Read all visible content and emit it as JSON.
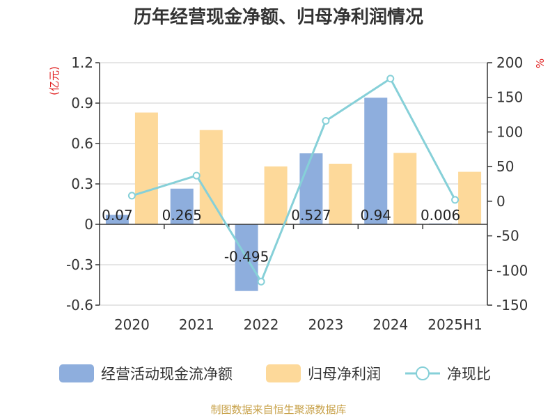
{
  "page": {
    "title": "历年经营现金净额、归母净利润情况",
    "source": "制图数据来自恒生聚源数据库"
  },
  "chart_data": {
    "type": "bar",
    "title": "历年经营现金净额、归母净利润情况",
    "categories": [
      "2020",
      "2021",
      "2022",
      "2023",
      "2024",
      "2025H1"
    ],
    "y_left": {
      "unit_label": "(亿元)",
      "range": [
        -0.6,
        1.2
      ],
      "ticks": [
        "1.2",
        "0.9",
        "0.6",
        "0.3",
        "0",
        "-0.3",
        "-0.6"
      ],
      "tick_values": [
        1.2,
        0.9,
        0.6,
        0.3,
        0,
        -0.3,
        -0.6
      ]
    },
    "y_right": {
      "unit_label": "%",
      "range": [
        -150,
        200
      ],
      "ticks": [
        "200",
        "150",
        "100",
        "50",
        "0",
        "-50",
        "-100",
        "-150"
      ],
      "tick_values": [
        200,
        150,
        100,
        50,
        0,
        -50,
        -100,
        -150
      ]
    },
    "series": [
      {
        "name": "经营活动现金流净额",
        "type": "bar",
        "axis": "left",
        "color": "#8eaedd",
        "values": [
          0.07,
          0.265,
          -0.495,
          0.527,
          0.94,
          0.006
        ],
        "labels": [
          "0.07",
          "0.265",
          "-0.495",
          "0.527",
          "0.94",
          "0.006"
        ]
      },
      {
        "name": "归母净利润",
        "type": "bar",
        "axis": "left",
        "color": "#fdd99a",
        "values": [
          0.83,
          0.7,
          0.43,
          0.45,
          0.53,
          0.39
        ]
      },
      {
        "name": "净现比",
        "type": "line",
        "axis": "right",
        "color": "#86d0d8",
        "values": [
          8,
          37,
          -116,
          116,
          177,
          2
        ]
      }
    ],
    "legend_position": "bottom",
    "grid": true
  }
}
